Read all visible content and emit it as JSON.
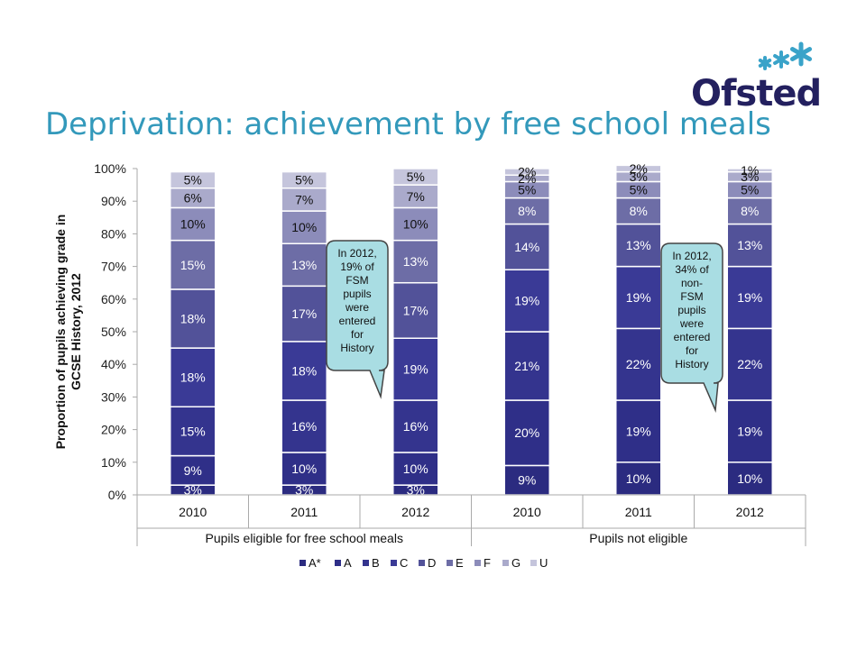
{
  "title": "Deprivation: achievement by free school meals",
  "logo": {
    "text": "Ofsted",
    "color": "#23205f",
    "star_colors": [
      "#3aa3c9",
      "#3aa3c9",
      "#3aa3c9"
    ]
  },
  "chart_data": {
    "type": "bar",
    "stacked": true,
    "ylabel": "Proportion of pupils achieving grade in GCSE History, 2012",
    "ylim": [
      0,
      100
    ],
    "ytick_labels": [
      "0%",
      "10%",
      "20%",
      "30%",
      "40%",
      "50%",
      "60%",
      "70%",
      "80%",
      "90%",
      "100%"
    ],
    "categories": [
      "2010",
      "2011",
      "2012",
      "2010",
      "2011",
      "2012"
    ],
    "groups": [
      {
        "label": "Pupils eligible for free school meals",
        "span": [
          0,
          2
        ]
      },
      {
        "label": "Pupils not eligible",
        "span": [
          3,
          5
        ]
      }
    ],
    "legend_position": "bottom",
    "series": [
      {
        "name": "A*",
        "color": "#2b2b80",
        "values": [
          3,
          3,
          3,
          9,
          10,
          10
        ],
        "labels": [
          "3%",
          "3%",
          "3%",
          "9%",
          "10%",
          "10%"
        ]
      },
      {
        "name": "A",
        "color": "#2f2f88",
        "values": [
          9,
          10,
          10,
          20,
          19,
          19
        ],
        "labels": [
          "9%",
          "10%",
          "10%",
          "20%",
          "19%",
          "19%"
        ]
      },
      {
        "name": "B",
        "color": "#34348e",
        "values": [
          15,
          16,
          16,
          21,
          22,
          22
        ],
        "labels": [
          "15%",
          "16%",
          "16%",
          "21%",
          "22%",
          "22%"
        ]
      },
      {
        "name": "C",
        "color": "#3a3a96",
        "values": [
          18,
          18,
          19,
          19,
          19,
          19
        ],
        "labels": [
          "18%",
          "18%",
          "19%",
          "19%",
          "19%",
          "19%"
        ]
      },
      {
        "name": "D",
        "color": "#525299",
        "values": [
          18,
          17,
          17,
          14,
          13,
          13
        ],
        "labels": [
          "18%",
          "17%",
          "17%",
          "14%",
          "13%",
          "13%"
        ]
      },
      {
        "name": "E",
        "color": "#6d6da6",
        "values": [
          15,
          13,
          13,
          8,
          8,
          8
        ],
        "labels": [
          "15%",
          "13%",
          "13%",
          "8%",
          "8%",
          "8%"
        ]
      },
      {
        "name": "F",
        "color": "#8c8cba",
        "values": [
          10,
          10,
          10,
          5,
          5,
          5
        ],
        "labels": [
          "10%",
          "10%",
          "10%",
          "5%",
          "5%",
          "5%"
        ]
      },
      {
        "name": "G",
        "color": "#aaaacb",
        "values": [
          6,
          7,
          7,
          2,
          3,
          3
        ],
        "labels": [
          "6%",
          "7%",
          "7%",
          "2%",
          "3%",
          "3%"
        ]
      },
      {
        "name": "U",
        "color": "#c5c5dc",
        "values": [
          5,
          5,
          5,
          2,
          2,
          1
        ],
        "labels": [
          "5%",
          "5%",
          "5%",
          "2%",
          "2%",
          "1%"
        ]
      }
    ],
    "annotations": [
      {
        "text": "In 2012, 19% of FSM pupils were entered for History",
        "lines": [
          "In 2012,",
          "19% of",
          "FSM",
          "pupils",
          "were",
          "entered",
          "for",
          "History"
        ]
      },
      {
        "text": "In 2012, 34% of non-FSM pupils were entered for History",
        "lines": [
          "In 2012,",
          "34% of",
          "non-",
          "FSM",
          "pupils",
          "were",
          "entered",
          "for",
          "History"
        ]
      }
    ],
    "callout_color": "#a9dde3"
  }
}
